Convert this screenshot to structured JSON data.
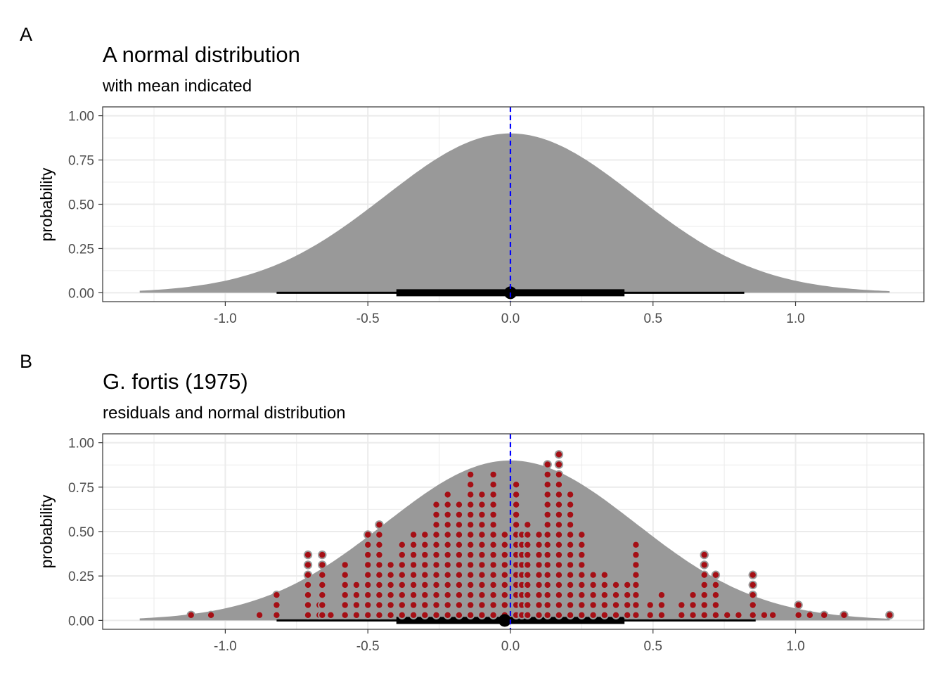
{
  "colors": {
    "density_fill": "#999999",
    "mean_line": "#0000ff",
    "interval": "#000000",
    "dot_fill": "#a50f15",
    "dot_stroke": "#9a9a9a",
    "grid": "#ebebeb",
    "panel_border": "#333333"
  },
  "chart_data": [
    {
      "tag": "A",
      "type": "area",
      "title": "A normal distribution",
      "subtitle": "with mean indicated",
      "xlabel": "",
      "ylabel": "probability",
      "xlim": [
        -1.43,
        1.45
      ],
      "ylim": [
        -0.05,
        1.05
      ],
      "x_ticks": [
        "-1.0",
        "-0.5",
        "0.0",
        "0.5",
        "1.0"
      ],
      "x_tick_values": [
        -1.0,
        -0.5,
        0.0,
        0.5,
        1.0
      ],
      "y_ticks": [
        "0.00",
        "0.25",
        "0.50",
        "0.75",
        "1.00"
      ],
      "y_tick_values": [
        0,
        0.25,
        0.5,
        0.75,
        1.0
      ],
      "grid": true,
      "density": {
        "mean": 0.0,
        "sd": 0.44,
        "peak": 0.9,
        "x_range": [
          -1.3,
          1.33
        ]
      },
      "mean_line": 0.0,
      "point_interval": {
        "point": 0.0,
        "inner": [
          -0.4,
          0.4
        ],
        "outer": [
          -0.82,
          0.82
        ]
      },
      "dots": []
    },
    {
      "tag": "B",
      "type": "area",
      "title": "G. fortis (1975)",
      "subtitle": "residuals and normal distribution",
      "xlabel": "",
      "ylabel": "probability",
      "xlim": [
        -1.43,
        1.45
      ],
      "ylim": [
        -0.05,
        1.05
      ],
      "x_ticks": [
        "-1.0",
        "-0.5",
        "0.0",
        "0.5",
        "1.0"
      ],
      "x_tick_values": [
        -1.0,
        -0.5,
        0.0,
        0.5,
        1.0
      ],
      "y_ticks": [
        "0.00",
        "0.25",
        "0.50",
        "0.75",
        "1.00"
      ],
      "y_tick_values": [
        0,
        0.25,
        0.5,
        0.75,
        1.0
      ],
      "grid": true,
      "density": {
        "mean": 0.0,
        "sd": 0.44,
        "peak": 0.9,
        "x_range": [
          -1.3,
          1.33
        ]
      },
      "mean_line": 0.0,
      "point_interval": {
        "point": -0.02,
        "inner": [
          -0.4,
          0.4
        ],
        "outer": [
          -0.82,
          0.86
        ]
      },
      "dots": {
        "y_start": 0.03,
        "y_step": 0.0565,
        "columns": [
          {
            "x": -1.12,
            "n": 1
          },
          {
            "x": -1.05,
            "n": 1
          },
          {
            "x": -0.88,
            "n": 1
          },
          {
            "x": -0.82,
            "n": 3
          },
          {
            "x": -0.71,
            "n": 7
          },
          {
            "x": -0.67,
            "n": 2
          },
          {
            "x": -0.66,
            "n": 7
          },
          {
            "x": -0.63,
            "n": 1
          },
          {
            "x": -0.58,
            "n": 6
          },
          {
            "x": -0.54,
            "n": 4
          },
          {
            "x": -0.5,
            "n": 9
          },
          {
            "x": -0.46,
            "n": 10
          },
          {
            "x": -0.42,
            "n": 6
          },
          {
            "x": -0.38,
            "n": 8
          },
          {
            "x": -0.34,
            "n": 9
          },
          {
            "x": -0.3,
            "n": 9
          },
          {
            "x": -0.26,
            "n": 12
          },
          {
            "x": -0.22,
            "n": 13
          },
          {
            "x": -0.18,
            "n": 12
          },
          {
            "x": -0.14,
            "n": 15
          },
          {
            "x": -0.1,
            "n": 13
          },
          {
            "x": -0.06,
            "n": 15
          },
          {
            "x": -0.02,
            "n": 9
          },
          {
            "x": 0.02,
            "n": 14
          },
          {
            "x": 0.04,
            "n": 9
          },
          {
            "x": 0.06,
            "n": 10
          },
          {
            "x": 0.1,
            "n": 9
          },
          {
            "x": 0.13,
            "n": 16
          },
          {
            "x": 0.17,
            "n": 17
          },
          {
            "x": 0.21,
            "n": 13
          },
          {
            "x": 0.25,
            "n": 9
          },
          {
            "x": 0.29,
            "n": 5
          },
          {
            "x": 0.33,
            "n": 5
          },
          {
            "x": 0.37,
            "n": 4
          },
          {
            "x": 0.41,
            "n": 4
          },
          {
            "x": 0.44,
            "n": 8
          },
          {
            "x": 0.49,
            "n": 2
          },
          {
            "x": 0.53,
            "n": 3
          },
          {
            "x": 0.6,
            "n": 2
          },
          {
            "x": 0.64,
            "n": 3
          },
          {
            "x": 0.68,
            "n": 7
          },
          {
            "x": 0.72,
            "n": 5
          },
          {
            "x": 0.76,
            "n": 1
          },
          {
            "x": 0.8,
            "n": 1
          },
          {
            "x": 0.85,
            "n": 5
          },
          {
            "x": 0.89,
            "n": 1
          },
          {
            "x": 0.92,
            "n": 1
          },
          {
            "x": 1.01,
            "n": 2
          },
          {
            "x": 1.05,
            "n": 1
          },
          {
            "x": 1.1,
            "n": 1
          },
          {
            "x": 1.17,
            "n": 1
          },
          {
            "x": 1.33,
            "n": 1
          }
        ]
      }
    }
  ]
}
